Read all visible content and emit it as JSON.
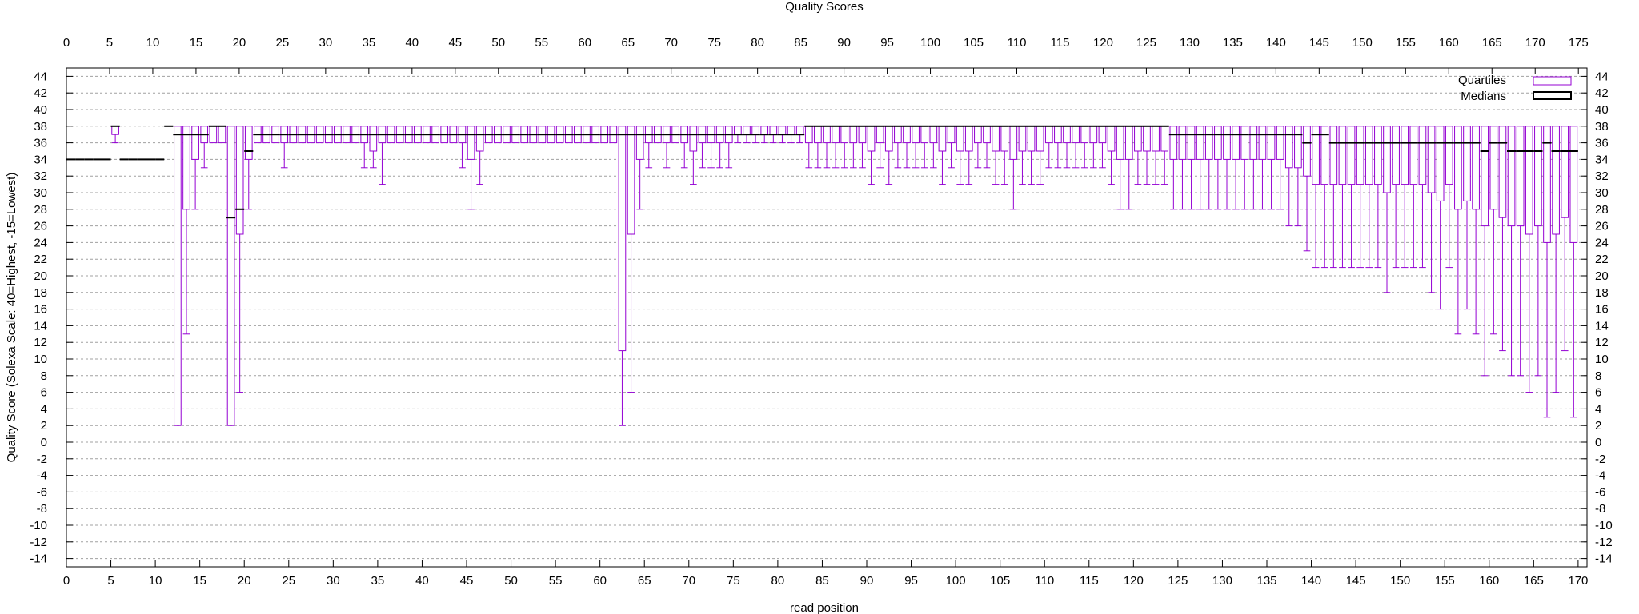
{
  "chart_data": {
    "type": "box",
    "title": "Quality Scores",
    "xlabel": "read position",
    "ylabel": "Quality Score (Solexa Scale: 40=Highest, -15=Lowest)",
    "xlim_bottom": [
      0,
      171
    ],
    "xlim_top": [
      0,
      176
    ],
    "ylim": [
      -15,
      45
    ],
    "x_ticks_bottom": [
      0,
      5,
      10,
      15,
      20,
      25,
      30,
      35,
      40,
      45,
      50,
      55,
      60,
      65,
      70,
      75,
      80,
      85,
      90,
      95,
      100,
      105,
      110,
      115,
      120,
      125,
      130,
      135,
      140,
      145,
      150,
      155,
      160,
      165,
      170
    ],
    "x_ticks_top": [
      0,
      5,
      10,
      15,
      20,
      25,
      30,
      35,
      40,
      45,
      50,
      55,
      60,
      65,
      70,
      75,
      80,
      85,
      90,
      95,
      100,
      105,
      110,
      115,
      120,
      125,
      130,
      135,
      140,
      145,
      150,
      155,
      160,
      165,
      170,
      175
    ],
    "y_ticks": [
      44,
      42,
      40,
      38,
      36,
      34,
      32,
      30,
      28,
      26,
      24,
      22,
      20,
      18,
      16,
      14,
      12,
      10,
      8,
      6,
      4,
      2,
      0,
      -2,
      -4,
      -6,
      -8,
      -10,
      -12,
      -14
    ],
    "grid": true,
    "legend_position": "top-right",
    "series": [
      {
        "name": "Quartiles",
        "color": "#9400d3"
      },
      {
        "name": "Medians",
        "color": "#000000"
      }
    ],
    "positions": [
      1,
      2,
      3,
      4,
      5,
      6,
      7,
      8,
      9,
      10,
      11,
      12,
      13,
      14,
      15,
      16,
      17,
      18,
      19,
      20,
      21,
      22,
      23,
      24,
      25,
      26,
      27,
      28,
      29,
      30,
      31,
      32,
      33,
      34,
      35,
      36,
      37,
      38,
      39,
      40,
      41,
      42,
      43,
      44,
      45,
      46,
      47,
      48,
      49,
      50,
      51,
      52,
      53,
      54,
      55,
      56,
      57,
      58,
      59,
      60,
      61,
      62,
      63,
      64,
      65,
      66,
      67,
      68,
      69,
      70,
      71,
      72,
      73,
      74,
      75,
      76,
      77,
      78,
      79,
      80,
      81,
      82,
      83,
      84,
      85,
      86,
      87,
      88,
      89,
      90,
      91,
      92,
      93,
      94,
      95,
      96,
      97,
      98,
      99,
      100,
      101,
      102,
      103,
      104,
      105,
      106,
      107,
      108,
      109,
      110,
      111,
      112,
      113,
      114,
      115,
      116,
      117,
      118,
      119,
      120,
      121,
      122,
      123,
      124,
      125,
      126,
      127,
      128,
      129,
      130,
      131,
      132,
      133,
      134,
      135,
      136,
      137,
      138,
      139,
      140,
      141,
      142,
      143,
      144,
      145,
      146,
      147,
      148,
      149,
      150,
      151,
      152,
      153,
      154,
      155,
      156,
      157,
      158,
      159,
      160,
      161,
      162,
      163,
      164,
      165,
      166,
      167,
      168,
      169,
      170
    ],
    "whisker_low": [
      34,
      34,
      34,
      34,
      34,
      36,
      34,
      34,
      34,
      34,
      34,
      38,
      2,
      13,
      28,
      33,
      36,
      36,
      2,
      6,
      28,
      36,
      36,
      36,
      33,
      36,
      36,
      36,
      36,
      36,
      36,
      36,
      36,
      33,
      33,
      31,
      36,
      36,
      36,
      36,
      36,
      36,
      36,
      36,
      33,
      28,
      31,
      36,
      36,
      36,
      36,
      36,
      36,
      36,
      36,
      36,
      36,
      36,
      36,
      36,
      36,
      36,
      2,
      6,
      28,
      33,
      36,
      33,
      36,
      33,
      31,
      33,
      33,
      33,
      33,
      36,
      36,
      36,
      36,
      36,
      36,
      36,
      36,
      33,
      33,
      33,
      33,
      33,
      33,
      33,
      31,
      33,
      31,
      33,
      33,
      33,
      33,
      33,
      31,
      33,
      31,
      31,
      33,
      33,
      31,
      31,
      28,
      31,
      31,
      31,
      33,
      33,
      33,
      33,
      33,
      33,
      33,
      31,
      28,
      28,
      31,
      31,
      31,
      31,
      28,
      28,
      28,
      28,
      28,
      28,
      28,
      28,
      28,
      28,
      28,
      28,
      28,
      26,
      26,
      23,
      21,
      21,
      21,
      21,
      21,
      21,
      21,
      21,
      18,
      21,
      21,
      21,
      21,
      18,
      16,
      21,
      13,
      16,
      13,
      8,
      13,
      11,
      8,
      8,
      6,
      8,
      3,
      6,
      11,
      3,
      3,
      3,
      6,
      2
    ],
    "q1": [
      34,
      34,
      34,
      34,
      34,
      37,
      34,
      34,
      34,
      34,
      34,
      38,
      2,
      28,
      34,
      36,
      36,
      36,
      2,
      25,
      34,
      36,
      36,
      36,
      36,
      36,
      36,
      36,
      36,
      36,
      36,
      36,
      36,
      36,
      35,
      36,
      36,
      36,
      36,
      36,
      36,
      36,
      36,
      36,
      36,
      34,
      35,
      36,
      36,
      36,
      36,
      36,
      36,
      36,
      36,
      36,
      36,
      36,
      36,
      36,
      36,
      36,
      11,
      25,
      34,
      36,
      36,
      36,
      36,
      36,
      35,
      36,
      36,
      36,
      36,
      37,
      37,
      37,
      37,
      37,
      37,
      37,
      37,
      36,
      36,
      36,
      36,
      36,
      36,
      36,
      35,
      36,
      35,
      36,
      36,
      36,
      36,
      36,
      35,
      36,
      35,
      35,
      36,
      36,
      35,
      35,
      34,
      35,
      35,
      35,
      36,
      36,
      36,
      36,
      36,
      36,
      36,
      35,
      34,
      34,
      35,
      35,
      35,
      35,
      34,
      34,
      34,
      34,
      34,
      34,
      34,
      34,
      34,
      34,
      34,
      34,
      34,
      33,
      33,
      32,
      31,
      31,
      31,
      31,
      31,
      31,
      31,
      31,
      30,
      31,
      31,
      31,
      31,
      30,
      29,
      31,
      28,
      29,
      28,
      26,
      28,
      27,
      26,
      26,
      25,
      26,
      24,
      25,
      27,
      24,
      24,
      24,
      25,
      23
    ],
    "median": [
      34,
      34,
      34,
      34,
      34,
      38,
      34,
      34,
      34,
      34,
      34,
      38,
      37,
      37,
      37,
      37,
      38,
      38,
      27,
      28,
      35,
      37,
      37,
      37,
      37,
      37,
      37,
      37,
      37,
      37,
      37,
      37,
      37,
      37,
      37,
      37,
      37,
      37,
      37,
      37,
      37,
      37,
      37,
      37,
      37,
      37,
      37,
      37,
      37,
      37,
      37,
      37,
      37,
      37,
      37,
      37,
      37,
      37,
      37,
      37,
      37,
      37,
      37,
      37,
      37,
      37,
      37,
      37,
      37,
      37,
      37,
      37,
      37,
      37,
      37,
      37,
      37,
      37,
      37,
      37,
      37,
      37,
      37,
      38,
      38,
      38,
      38,
      38,
      38,
      38,
      38,
      38,
      38,
      38,
      38,
      38,
      38,
      38,
      38,
      38,
      38,
      38,
      38,
      38,
      38,
      38,
      38,
      38,
      38,
      38,
      38,
      38,
      38,
      38,
      38,
      38,
      38,
      38,
      38,
      38,
      38,
      38,
      38,
      38,
      37,
      37,
      37,
      37,
      37,
      37,
      37,
      37,
      37,
      37,
      37,
      37,
      37,
      37,
      37,
      36,
      37,
      37,
      36,
      36,
      36,
      36,
      36,
      36,
      36,
      36,
      36,
      36,
      36,
      36,
      36,
      36,
      36,
      36,
      36,
      35,
      36,
      36,
      35,
      35,
      35,
      35,
      36,
      35,
      35,
      35,
      35,
      35,
      34
    ],
    "q3": [
      34,
      34,
      34,
      34,
      34,
      38,
      34,
      34,
      34,
      34,
      34,
      38,
      38,
      38,
      38,
      38,
      38,
      38,
      38,
      38,
      38,
      38,
      38,
      38,
      38,
      38,
      38,
      38,
      38,
      38,
      38,
      38,
      38,
      38,
      38,
      38,
      38,
      38,
      38,
      38,
      38,
      38,
      38,
      38,
      38,
      38,
      38,
      38,
      38,
      38,
      38,
      38,
      38,
      38,
      38,
      38,
      38,
      38,
      38,
      38,
      38,
      38,
      38,
      38,
      38,
      38,
      38,
      38,
      38,
      38,
      38,
      38,
      38,
      38,
      38,
      38,
      38,
      38,
      38,
      38,
      38,
      38,
      38,
      38,
      38,
      38,
      38,
      38,
      38,
      38,
      38,
      38,
      38,
      38,
      38,
      38,
      38,
      38,
      38,
      38,
      38,
      38,
      38,
      38,
      38,
      38,
      38,
      38,
      38,
      38,
      38,
      38,
      38,
      38,
      38,
      38,
      38,
      38,
      38,
      38,
      38,
      38,
      38,
      38,
      38,
      38,
      38,
      38,
      38,
      38,
      38,
      38,
      38,
      38,
      38,
      38,
      38,
      38,
      38,
      38,
      38,
      38,
      38,
      38,
      38,
      38,
      38,
      38,
      38,
      38,
      38,
      38,
      38,
      38,
      38,
      38,
      38,
      38,
      38,
      38,
      38,
      38,
      38,
      38,
      38,
      38,
      38,
      38,
      38,
      38,
      38,
      38,
      38,
      37
    ],
    "whisker_high": [
      34,
      34,
      34,
      34,
      34,
      38,
      34,
      34,
      34,
      34,
      34,
      38,
      38,
      38,
      38,
      38,
      38,
      38,
      38,
      38,
      38,
      38,
      38,
      38,
      38,
      38,
      38,
      38,
      38,
      38,
      38,
      38,
      38,
      38,
      38,
      38,
      38,
      38,
      38,
      38,
      38,
      38,
      38,
      38,
      38,
      38,
      38,
      38,
      38,
      38,
      38,
      38,
      38,
      38,
      38,
      38,
      38,
      38,
      38,
      38,
      38,
      38,
      38,
      38,
      38,
      38,
      38,
      38,
      38,
      38,
      38,
      38,
      38,
      38,
      38,
      38,
      38,
      38,
      38,
      38,
      38,
      38,
      38,
      38,
      38,
      38,
      38,
      38,
      38,
      38,
      38,
      38,
      38,
      38,
      38,
      38,
      38,
      38,
      38,
      38,
      38,
      38,
      38,
      38,
      38,
      38,
      38,
      38,
      38,
      38,
      38,
      38,
      38,
      38,
      38,
      38,
      38,
      38,
      38,
      38,
      38,
      38,
      38,
      38,
      38,
      38,
      38,
      38,
      38,
      38,
      38,
      38,
      38,
      38,
      38,
      38,
      38,
      38,
      38,
      38,
      38,
      38,
      38,
      38,
      38,
      38,
      38,
      38,
      38,
      38,
      38,
      38,
      38,
      38,
      38,
      38,
      38,
      38,
      38,
      38,
      38,
      38,
      38,
      38,
      38,
      38,
      38,
      38,
      38,
      38,
      38,
      38,
      38,
      38
    ]
  }
}
